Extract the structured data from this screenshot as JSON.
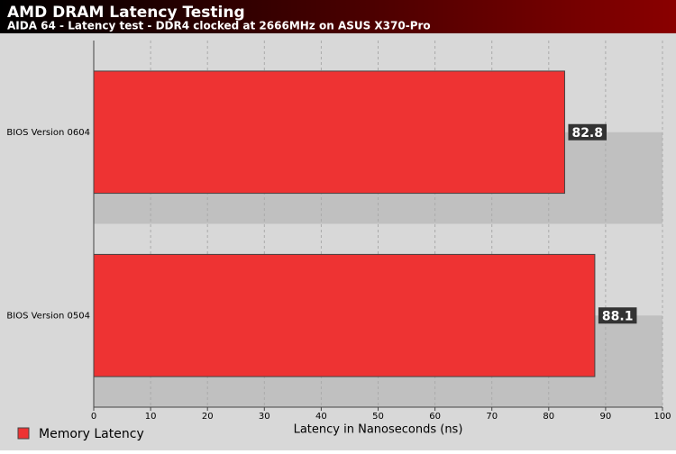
{
  "chart_data": {
    "type": "bar",
    "orientation": "horizontal",
    "title": "AMD DRAM Latency Testing",
    "subtitle": "AIDA 64 - Latency test - DDR4 clocked at 2666MHz on ASUS X370-Pro",
    "categories": [
      "BIOS Version 0604",
      "BIOS Version 0504"
    ],
    "series": [
      {
        "name": "Memory Latency",
        "color": "#ee3333",
        "values": [
          82.8,
          88.1
        ]
      }
    ],
    "xlabel": "Latency in Nanoseconds (ns)",
    "xlim": [
      0,
      100
    ],
    "xticks": [
      0,
      10,
      20,
      30,
      40,
      50,
      60,
      70,
      80,
      90,
      100
    ],
    "grid": true,
    "legend": "bottom-left"
  }
}
